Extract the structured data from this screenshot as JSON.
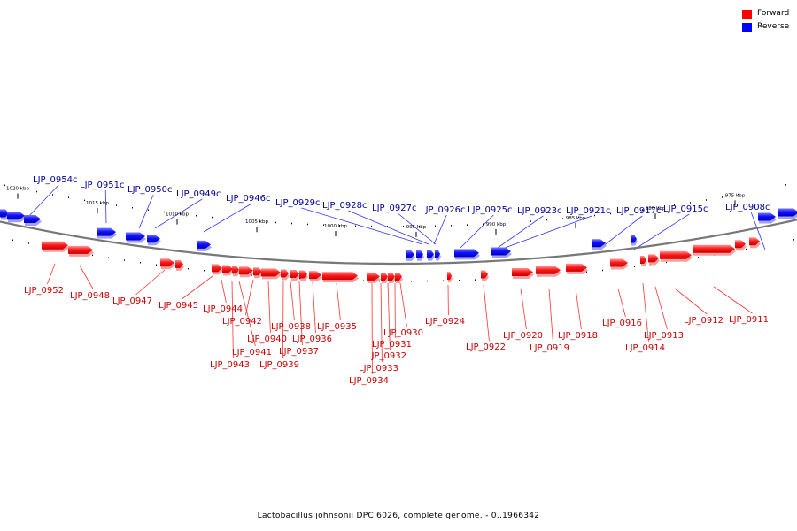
{
  "caption": "Lactobacillus johnsonii DPC 6026, complete genome. - 0..1966342",
  "legend": {
    "forward_label": "Forward",
    "reverse_label": "Reverse",
    "forward_color": "#ff0000",
    "reverse_color": "#0000ff"
  },
  "colors": {
    "forward_label": "#cc0000",
    "reverse_label": "#000099",
    "forward_leader": "#ff3333",
    "reverse_leader": "#3333ff",
    "backbone": "#777777"
  },
  "scale_ticks": [
    "1020 kbp",
    "1015 kbp",
    "1010 kbp",
    "1005 kbp",
    "1000 kbp",
    "995 kbp",
    "990 kbp",
    "985 kbp",
    "980 kbp",
    "975 kbp"
  ],
  "reverse_labels": [
    "LJP_0954c",
    "LJP_0951c",
    "LJP_0950c",
    "LJP_0949c",
    "LJP_0946c",
    "LJP_0929c",
    "LJP_0928c",
    "LJP_0927c",
    "LJP_0926c",
    "LJP_0925c",
    "LJP_0923c",
    "LJP_0921c",
    "LJP_0917c",
    "LJP_0915c",
    "LJP_0908c"
  ],
  "forward_labels": [
    "LJP_0952",
    "LJP_0948",
    "LJP_0947",
    "LJP_0945",
    "LJP_0944",
    "LJP_0943",
    "LJP_0942",
    "LJP_0941",
    "LJP_0940",
    "LJP_0939",
    "LJP_0938",
    "LJP_0937",
    "LJP_0936",
    "LJP_0935",
    "LJP_0934",
    "LJP_0933",
    "LJP_0932",
    "LJP_0931",
    "LJP_0930",
    "LJP_0924",
    "LJP_0922",
    "LJP_0920",
    "LJP_0919",
    "LJP_0918",
    "LJP_0916",
    "LJP_0914",
    "LJP_0913",
    "LJP_0912",
    "LJP_0911"
  ]
}
